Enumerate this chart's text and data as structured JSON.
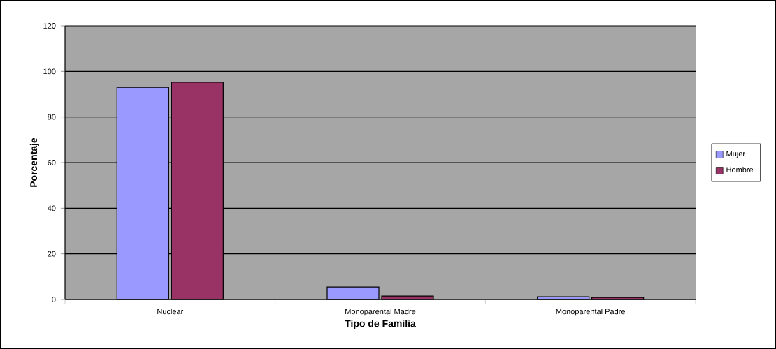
{
  "chart_data": {
    "type": "bar",
    "xlabel": "Tipo de Familia",
    "ylabel": "Porcentaje",
    "categories": [
      "Nuclear",
      "Monoparental Madre",
      "Monoparental Padre"
    ],
    "series": [
      {
        "name": "Mujer",
        "color": "#9999ff",
        "values": [
          93,
          5.5,
          1.2
        ]
      },
      {
        "name": "Hombre",
        "color": "#993366",
        "values": [
          95.2,
          1.5,
          0.9
        ]
      }
    ],
    "ylim": [
      0,
      120
    ],
    "yticks": [
      0,
      20,
      40,
      60,
      80,
      100,
      120
    ],
    "grid": "y",
    "legend": "right"
  }
}
